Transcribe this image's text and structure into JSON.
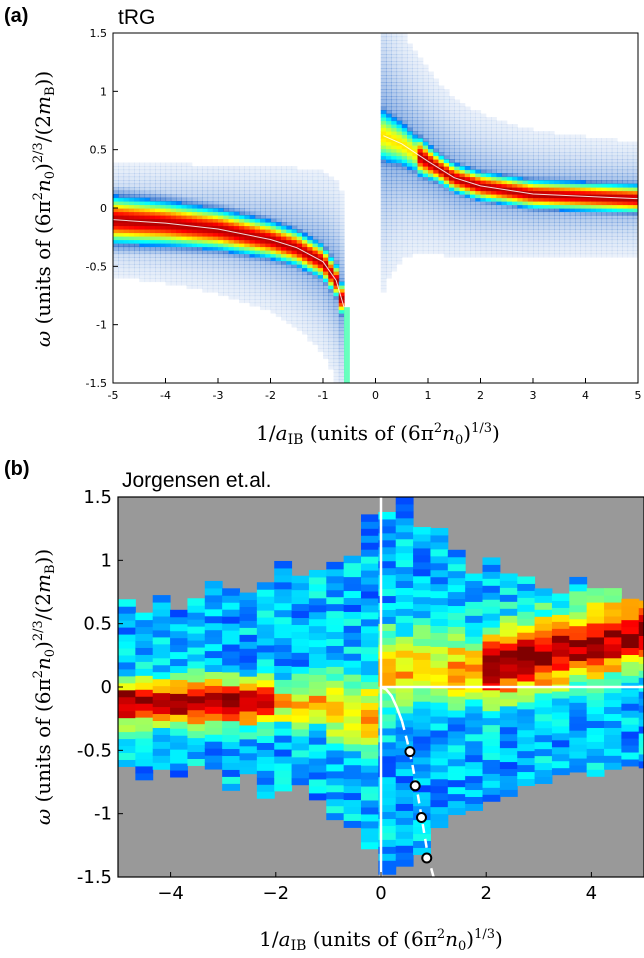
{
  "chart_data": [
    {
      "panel_label": "(a)",
      "type": "heatmap",
      "title": "tRG",
      "xlabel": "1/a_IB (units of (6π²n₀)^1/3)",
      "ylabel": "ω (units of (6π²n₀)^2/3/(2m_B))",
      "xlim": [
        -5,
        5
      ],
      "ylim": [
        -1.5,
        1.5
      ],
      "x_ticks": [
        "-5",
        "-4",
        "-3",
        "-2",
        "-1",
        "0",
        "1",
        "2",
        "3",
        "4",
        "5"
      ],
      "y_ticks": [
        "1.5",
        "1",
        "0.5",
        "0",
        "-0.5",
        "-1",
        "-1.5"
      ],
      "colormap": "jet",
      "gap_region": [
        -0.55,
        0.1
      ],
      "repulsive_branch_peak": {
        "x": [
          -5,
          -4,
          -3,
          -2,
          -1.5,
          -1,
          -0.75,
          -0.6
        ],
        "y": [
          -0.1,
          -0.13,
          -0.18,
          -0.27,
          -0.34,
          -0.46,
          -0.62,
          -0.85
        ]
      },
      "attractive_branch_peak": {
        "x": [
          0.15,
          0.5,
          1,
          1.5,
          2,
          3,
          4,
          5
        ],
        "y": [
          0.62,
          0.55,
          0.4,
          0.26,
          0.19,
          0.12,
          0.1,
          0.08
        ]
      }
    },
    {
      "panel_label": "(b)",
      "type": "heatmap",
      "title": "Jorgensen et.al.",
      "xlabel": "1/a_IB (units of (6π²n₀)^1/3)",
      "ylabel": "ω (units of (6π²n₀)^2/3/(2m_B))",
      "xlim": [
        -5,
        5
      ],
      "ylim": [
        -1.5,
        1.5
      ],
      "x_ticks": [
        "−4",
        "−2",
        "0",
        "2",
        "4"
      ],
      "y_ticks": [
        "1.5",
        "1",
        "0.5",
        "0",
        "-0.5",
        "-1",
        "-1.5"
      ],
      "colormap": "jet",
      "background": "#999999",
      "reference_lines": {
        "vertical_x": 0,
        "horizontal_y": 0,
        "color": "#ffffff"
      },
      "white_curve_solid": {
        "x": [
          0,
          0.1,
          0.2,
          0.3,
          0.4
        ],
        "y": [
          0,
          -0.02,
          -0.07,
          -0.16,
          -0.27
        ]
      },
      "white_curve_dashed": {
        "x": [
          0.4,
          0.5,
          0.6,
          0.7,
          0.8,
          0.9,
          1.0
        ],
        "y": [
          -0.27,
          -0.43,
          -0.62,
          -0.85,
          -1.1,
          -1.35,
          -1.5
        ]
      },
      "circles": {
        "x": [
          0.55,
          0.65,
          0.77,
          0.87
        ],
        "y": [
          -0.51,
          -0.78,
          -1.03,
          -1.35
        ]
      }
    }
  ]
}
